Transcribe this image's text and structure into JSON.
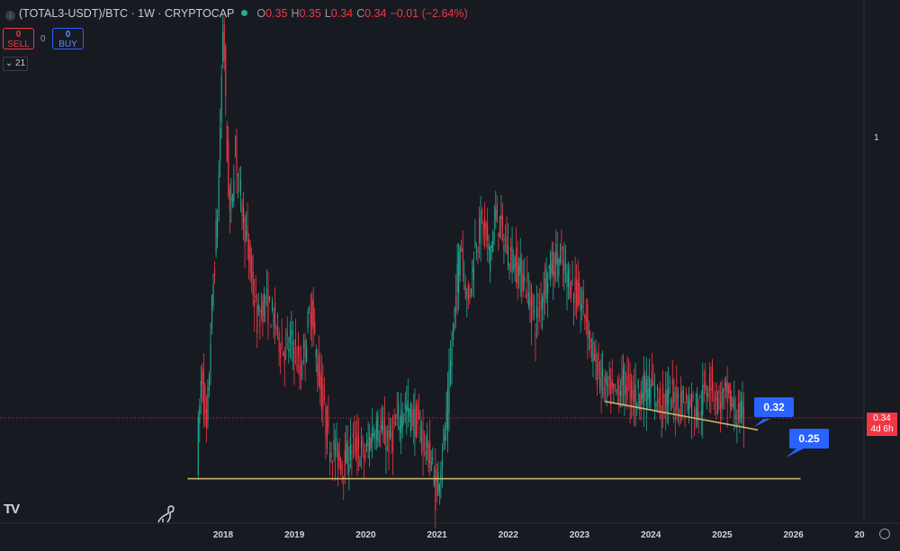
{
  "header": {
    "symbol": "(TOTAL3-USDT)/BTC · 1W · CRYPTOCAP",
    "o_label": "O",
    "o_value": "0.35",
    "h_label": "H",
    "h_value": "0.35",
    "l_label": "L",
    "l_value": "0.34",
    "c_label": "C",
    "c_value": "0.34",
    "change": "−0.01 (−2.64%)"
  },
  "trade": {
    "sell_price": "0",
    "sell_label": "SELL",
    "spread": "0",
    "buy_price": "0",
    "buy_label": "BUY"
  },
  "indicator_badge": "21",
  "price_axis": {
    "top_label": "1",
    "current_price": "0.34",
    "countdown": "4d 6h"
  },
  "logo_text": "TV",
  "annotations": {
    "descending_line_label": "0.32",
    "horizontal_line_label": "0.25"
  },
  "colors": {
    "background": "#181a21",
    "up": "#22ab94",
    "down": "#f23645",
    "trendline": "#c9b46a",
    "label": "#2962ff"
  },
  "chart_data": {
    "type": "candlestick",
    "title": "(TOTAL3-USDT)/BTC",
    "interval": "1W",
    "x_axis_ticks": [
      "2018",
      "2019",
      "2020",
      "2021",
      "2022",
      "2023",
      "2024",
      "2025",
      "2026",
      "20"
    ],
    "y_axis_ticks": [
      "1"
    ],
    "current_price": 0.34,
    "series_path": [
      {
        "x": 2017.65,
        "y": 0.28
      },
      {
        "x": 2017.72,
        "y": 0.44
      },
      {
        "x": 2017.78,
        "y": 0.3
      },
      {
        "x": 2017.85,
        "y": 0.55
      },
      {
        "x": 2017.95,
        "y": 1.05
      },
      {
        "x": 2018.02,
        "y": 2.6
      },
      {
        "x": 2018.07,
        "y": 1.3
      },
      {
        "x": 2018.12,
        "y": 0.9
      },
      {
        "x": 2018.18,
        "y": 1.35
      },
      {
        "x": 2018.3,
        "y": 0.95
      },
      {
        "x": 2018.5,
        "y": 0.55
      },
      {
        "x": 2018.6,
        "y": 0.62
      },
      {
        "x": 2018.75,
        "y": 0.55
      },
      {
        "x": 2018.85,
        "y": 0.48
      },
      {
        "x": 2019.0,
        "y": 0.5
      },
      {
        "x": 2019.1,
        "y": 0.42
      },
      {
        "x": 2019.25,
        "y": 0.6
      },
      {
        "x": 2019.35,
        "y": 0.43
      },
      {
        "x": 2019.5,
        "y": 0.3
      },
      {
        "x": 2019.7,
        "y": 0.27
      },
      {
        "x": 2019.85,
        "y": 0.3
      },
      {
        "x": 2020.0,
        "y": 0.28
      },
      {
        "x": 2020.15,
        "y": 0.33
      },
      {
        "x": 2020.35,
        "y": 0.3
      },
      {
        "x": 2020.55,
        "y": 0.36
      },
      {
        "x": 2020.75,
        "y": 0.33
      },
      {
        "x": 2020.95,
        "y": 0.27
      },
      {
        "x": 2021.0,
        "y": 0.23
      },
      {
        "x": 2021.08,
        "y": 0.28
      },
      {
        "x": 2021.15,
        "y": 0.33
      },
      {
        "x": 2021.25,
        "y": 0.55
      },
      {
        "x": 2021.35,
        "y": 0.85
      },
      {
        "x": 2021.45,
        "y": 0.6
      },
      {
        "x": 2021.55,
        "y": 0.82
      },
      {
        "x": 2021.65,
        "y": 0.92
      },
      {
        "x": 2021.75,
        "y": 0.78
      },
      {
        "x": 2021.85,
        "y": 0.95
      },
      {
        "x": 2022.0,
        "y": 0.8
      },
      {
        "x": 2022.15,
        "y": 0.73
      },
      {
        "x": 2022.25,
        "y": 0.68
      },
      {
        "x": 2022.4,
        "y": 0.55
      },
      {
        "x": 2022.55,
        "y": 0.7
      },
      {
        "x": 2022.7,
        "y": 0.77
      },
      {
        "x": 2022.85,
        "y": 0.7
      },
      {
        "x": 2023.0,
        "y": 0.62
      },
      {
        "x": 2023.1,
        "y": 0.58
      },
      {
        "x": 2023.2,
        "y": 0.47
      },
      {
        "x": 2023.35,
        "y": 0.4
      },
      {
        "x": 2023.5,
        "y": 0.38
      },
      {
        "x": 2023.65,
        "y": 0.41
      },
      {
        "x": 2023.8,
        "y": 0.38
      },
      {
        "x": 2024.0,
        "y": 0.4
      },
      {
        "x": 2024.15,
        "y": 0.37
      },
      {
        "x": 2024.3,
        "y": 0.38
      },
      {
        "x": 2024.5,
        "y": 0.37
      },
      {
        "x": 2024.7,
        "y": 0.36
      },
      {
        "x": 2024.85,
        "y": 0.42
      },
      {
        "x": 2024.95,
        "y": 0.37
      },
      {
        "x": 2025.1,
        "y": 0.38
      },
      {
        "x": 2025.2,
        "y": 0.35
      },
      {
        "x": 2025.32,
        "y": 0.34
      }
    ],
    "lines": [
      {
        "name": "descending",
        "from": {
          "x": 2023.35,
          "y": 0.37
        },
        "to": {
          "x": 2025.5,
          "y": 0.32
        },
        "label": "0.32"
      },
      {
        "name": "horizontal",
        "from": {
          "x": 2017.5,
          "y": 0.25
        },
        "to": {
          "x": 2026.1,
          "y": 0.25
        },
        "label": "0.25"
      }
    ],
    "grid": false,
    "legend": "top-left"
  }
}
